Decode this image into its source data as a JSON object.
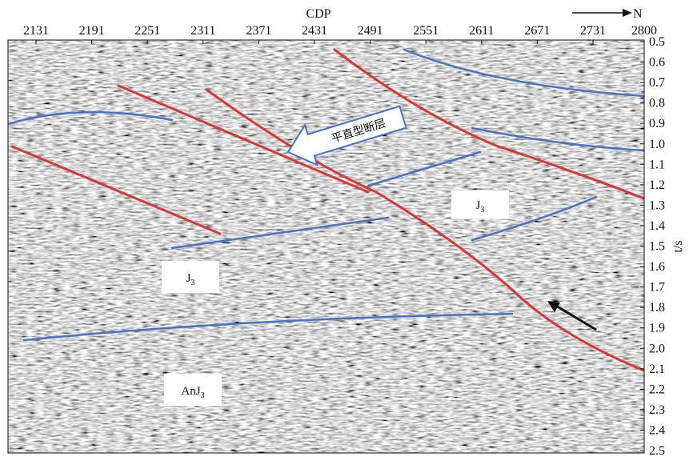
{
  "top_axis": {
    "title": "CDP",
    "ticks": [
      "2131",
      "2191",
      "2251",
      "2311",
      "2371",
      "2431",
      "2491",
      "2551",
      "2611",
      "2671",
      "2731",
      "2800"
    ]
  },
  "north_label": "N",
  "right_axis": {
    "title": "t/s",
    "ticks": [
      "0.5",
      "0.6",
      "0.7",
      "0.8",
      "0.9",
      "1.0",
      "1.1",
      "1.2",
      "1.3",
      "1.4",
      "1.5",
      "1.6",
      "1.7",
      "1.8",
      "1.9",
      "2.0",
      "2.1",
      "2.2",
      "2.3",
      "2.4",
      "2.5"
    ]
  },
  "annotations": {
    "fault_label": "平直型断层",
    "j3_upper": {
      "text": "J",
      "sub": "3"
    },
    "j3_lower": {
      "text": "J",
      "sub": "3"
    },
    "anj3": {
      "text": "AnJ",
      "sub": "3"
    }
  }
}
